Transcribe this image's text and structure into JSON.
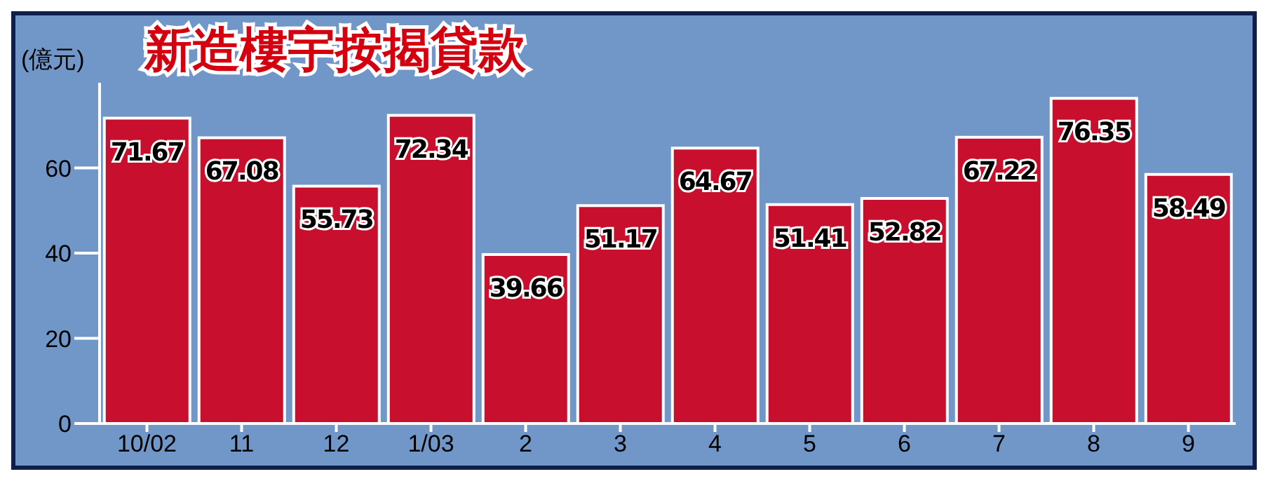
{
  "chart_data": {
    "type": "bar",
    "title": "新造樓宇按揭貸款",
    "ylabel": "(億元)",
    "categories": [
      "10/02",
      "11",
      "12",
      "1/03",
      "2",
      "3",
      "4",
      "5",
      "6",
      "7",
      "8",
      "9"
    ],
    "values": [
      71.67,
      67.08,
      55.73,
      72.34,
      39.66,
      51.17,
      64.67,
      51.41,
      52.82,
      67.22,
      76.35,
      58.49
    ],
    "color": "#c8102e",
    "data_labels": true,
    "grid": false,
    "legend": false,
    "ylim": [
      0,
      80
    ],
    "yticks": [
      0,
      20,
      40,
      60
    ]
  }
}
